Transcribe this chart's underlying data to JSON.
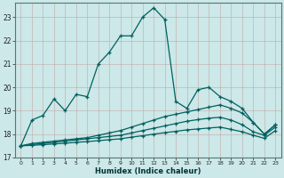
{
  "xlabel": "Humidex (Indice chaleur)",
  "background_color": "#cce8e8",
  "grid_color": "#b0d0d0",
  "line_color": "#006060",
  "xlim": [
    -0.5,
    23.5
  ],
  "ylim": [
    17,
    23.6
  ],
  "ytick_values": [
    17,
    18,
    19,
    20,
    21,
    22,
    23
  ],
  "curve1_x": [
    0,
    1,
    2,
    3,
    4,
    5,
    6,
    7,
    8,
    9,
    10,
    11,
    12,
    13,
    14,
    15,
    16,
    17,
    18,
    19,
    20,
    21,
    22,
    23
  ],
  "curve1_y": [
    17.5,
    18.6,
    18.8,
    19.5,
    19.0,
    19.7,
    19.6,
    21.0,
    21.5,
    22.2,
    22.2,
    23.0,
    23.4,
    22.9,
    19.4,
    19.1,
    19.9,
    20.0,
    19.6,
    19.4,
    19.1,
    18.5,
    18.0,
    18.4
  ],
  "curve2_x": [
    0,
    1,
    2,
    3,
    4,
    5,
    6,
    7,
    8,
    9,
    10,
    11,
    12,
    13,
    14,
    15,
    16,
    17,
    18,
    19,
    20,
    21,
    22,
    23
  ],
  "curve2_y": [
    17.5,
    17.6,
    17.65,
    17.7,
    17.75,
    17.8,
    17.85,
    17.95,
    18.05,
    18.15,
    18.3,
    18.45,
    18.6,
    18.75,
    18.85,
    18.95,
    19.05,
    19.15,
    19.25,
    19.1,
    18.9,
    18.5,
    18.0,
    18.4
  ],
  "curve3_x": [
    0,
    1,
    2,
    3,
    4,
    5,
    6,
    7,
    8,
    9,
    10,
    11,
    12,
    13,
    14,
    15,
    16,
    17,
    18,
    19,
    20,
    21,
    22,
    23
  ],
  "curve3_y": [
    17.5,
    17.55,
    17.6,
    17.65,
    17.7,
    17.75,
    17.8,
    17.85,
    17.9,
    17.95,
    18.05,
    18.15,
    18.25,
    18.35,
    18.45,
    18.55,
    18.62,
    18.68,
    18.72,
    18.6,
    18.4,
    18.1,
    17.95,
    18.3
  ],
  "curve4_x": [
    0,
    1,
    2,
    3,
    4,
    5,
    6,
    7,
    8,
    9,
    10,
    11,
    12,
    13,
    14,
    15,
    16,
    17,
    18,
    19,
    20,
    21,
    22,
    23
  ],
  "curve4_y": [
    17.5,
    17.52,
    17.55,
    17.58,
    17.61,
    17.65,
    17.68,
    17.72,
    17.76,
    17.8,
    17.87,
    17.93,
    18.0,
    18.06,
    18.12,
    18.18,
    18.22,
    18.26,
    18.3,
    18.2,
    18.1,
    17.95,
    17.82,
    18.15
  ]
}
